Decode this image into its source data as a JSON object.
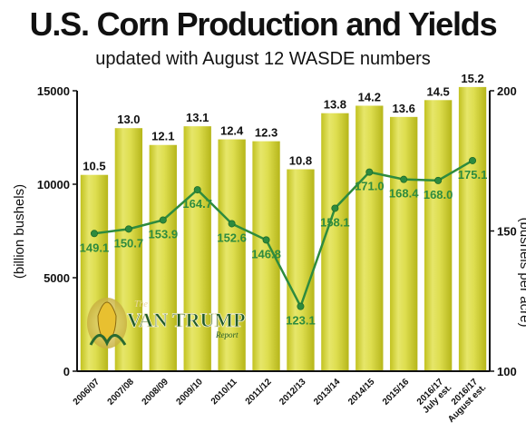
{
  "title": "U.S. Corn Production and Yields",
  "subtitle": "updated with August 12 WASDE numbers",
  "logo": {
    "the": "The",
    "main": "VAN TRUMP",
    "report": "Report"
  },
  "chart_data": {
    "type": "bar",
    "categories": [
      [
        "2006/07"
      ],
      [
        "2007/08"
      ],
      [
        "2008/09"
      ],
      [
        "2009/10"
      ],
      [
        "2010/11"
      ],
      [
        "2011/12"
      ],
      [
        "2012/13"
      ],
      [
        "2013/14"
      ],
      [
        "2014/15"
      ],
      [
        "2015/16"
      ],
      [
        "2016/17",
        "July est."
      ],
      [
        "2016/17",
        "August est."
      ]
    ],
    "series": [
      {
        "type": "bar",
        "axis": "left",
        "values": [
          10500,
          13000,
          12100,
          13100,
          12400,
          12300,
          10800,
          13800,
          14200,
          13600,
          14500,
          15200
        ],
        "labels": [
          "10.5",
          "13.0",
          "12.1",
          "13.1",
          "12.4",
          "12.3",
          "10.8",
          "13.8",
          "14.2",
          "13.6",
          "14.5",
          "15.2"
        ],
        "color": "#d8d84a"
      },
      {
        "type": "line",
        "axis": "right",
        "values": [
          149.1,
          150.7,
          153.9,
          164.7,
          152.6,
          146.8,
          123.1,
          158.1,
          171.0,
          168.4,
          168.0,
          175.1
        ],
        "labels": [
          "149.1",
          "150.7",
          "153.9",
          "164.7",
          "152.6",
          "146.8",
          "123.1",
          "158.1",
          "171.0",
          "168.4",
          "168.0",
          "175.1"
        ],
        "color": "#2e8b3e"
      }
    ],
    "ylabel": "(billion bushels)",
    "ylabel_right": "(bushels per acre)",
    "ylim": [
      0,
      15000
    ],
    "ylim_right": [
      100,
      200
    ],
    "yticks": [
      "0",
      "5000",
      "10000",
      "15000"
    ],
    "yticks_right": [
      "100",
      "150",
      "200"
    ],
    "grid": false
  }
}
